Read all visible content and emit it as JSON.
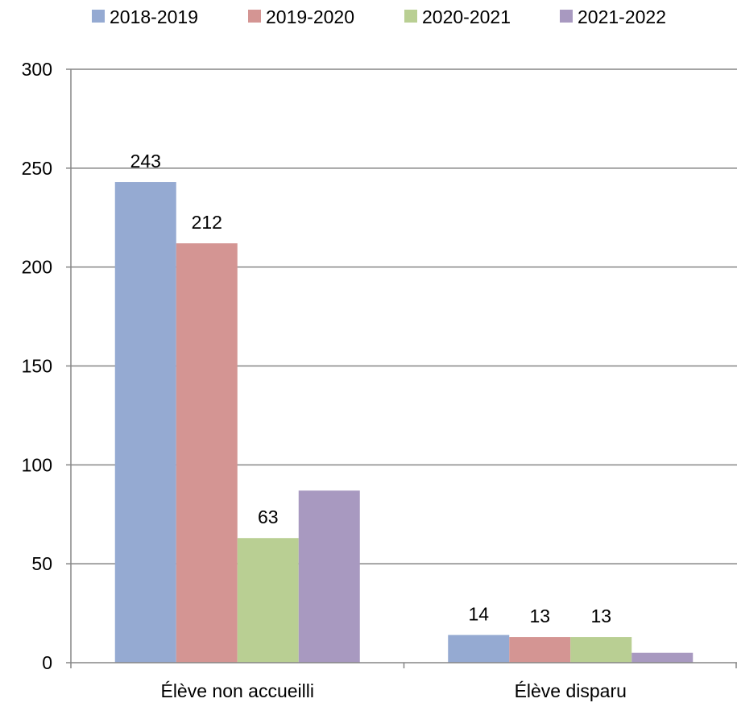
{
  "chart_data": {
    "type": "bar",
    "categories": [
      "Élève non accueilli",
      "Élève disparu"
    ],
    "series": [
      {
        "name": "2018-2019",
        "color": "#95aad2",
        "values": [
          243,
          14
        ],
        "labels": [
          "243",
          "14"
        ]
      },
      {
        "name": "2019-2020",
        "color": "#d49593",
        "values": [
          212,
          13
        ],
        "labels": [
          "212",
          "13"
        ]
      },
      {
        "name": "2020-2021",
        "color": "#b9cf93",
        "values": [
          63,
          13
        ],
        "labels": [
          "63",
          "13"
        ]
      },
      {
        "name": "2021-2022",
        "color": "#a899c0",
        "values": [
          87,
          5
        ],
        "labels": [
          "",
          ""
        ]
      }
    ],
    "y_ticks": [
      "0",
      "50",
      "100",
      "150",
      "200",
      "250",
      "300"
    ],
    "ylim": [
      0,
      300
    ],
    "grid": true,
    "legend_position": "top",
    "title": "",
    "xlabel": "",
    "ylabel": ""
  }
}
